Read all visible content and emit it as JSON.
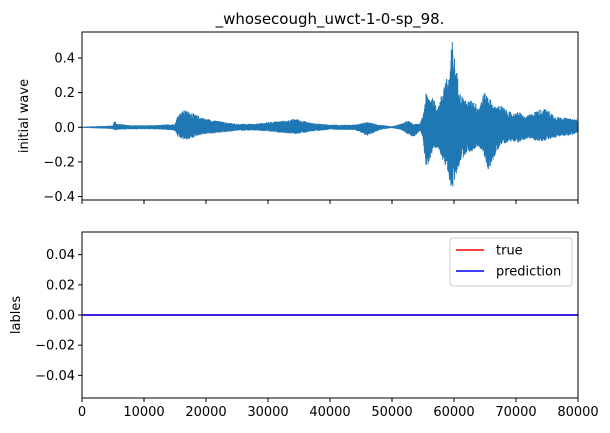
{
  "chart_data": [
    {
      "type": "line",
      "title": "_whosecough_uwct-1-0-sp_98.",
      "ylabel": "initial wave",
      "xlabel": "",
      "xlim": [
        0,
        80000
      ],
      "ylim": [
        -0.42,
        0.55
      ],
      "yticks": [
        -0.4,
        -0.2,
        0.0,
        0.2,
        0.4
      ],
      "ytick_labels": [
        "−0.4",
        "−0.2",
        "0.0",
        "0.2",
        "0.4"
      ],
      "xticks": [
        0,
        10000,
        20000,
        30000,
        40000,
        50000,
        60000,
        70000,
        80000
      ],
      "xtick_labels_visible": false,
      "series": [
        {
          "color": "#1f77b4",
          "envelope_x": [
            0,
            2000,
            5000,
            5300,
            5600,
            8000,
            12000,
            15000,
            15500,
            16500,
            17500,
            18500,
            20000,
            21500,
            23000,
            25000,
            28000,
            30000,
            33000,
            34500,
            35500,
            37000,
            40000,
            44000,
            46000,
            48000,
            50000,
            51500,
            52500,
            53500,
            54500,
            55000,
            55500,
            56500,
            57500,
            58500,
            59200,
            59700,
            60200,
            61000,
            62000,
            63000,
            64000,
            64800,
            65500,
            66500,
            67500,
            68500,
            69500,
            70500,
            71500,
            72500,
            73500,
            74500,
            75500,
            76500,
            77500,
            78500,
            79500,
            80000
          ],
          "upper": [
            0.003,
            0.006,
            0.01,
            0.045,
            0.02,
            0.012,
            0.012,
            0.02,
            0.075,
            0.1,
            0.09,
            0.07,
            0.05,
            0.04,
            0.03,
            0.02,
            0.02,
            0.03,
            0.04,
            0.05,
            0.04,
            0.025,
            0.015,
            0.015,
            0.03,
            0.015,
            0.005,
            0.02,
            0.04,
            0.02,
            0.02,
            0.07,
            0.2,
            0.17,
            0.12,
            0.27,
            0.3,
            0.51,
            0.38,
            0.2,
            0.15,
            0.16,
            0.12,
            0.2,
            0.19,
            0.12,
            0.13,
            0.1,
            0.08,
            0.09,
            0.06,
            0.08,
            0.1,
            0.11,
            0.09,
            0.06,
            0.06,
            0.05,
            0.05,
            0.04
          ],
          "lower": [
            -0.003,
            -0.006,
            -0.01,
            -0.02,
            -0.015,
            -0.012,
            -0.012,
            -0.02,
            -0.06,
            -0.075,
            -0.07,
            -0.05,
            -0.04,
            -0.035,
            -0.03,
            -0.02,
            -0.02,
            -0.025,
            -0.035,
            -0.04,
            -0.035,
            -0.025,
            -0.015,
            -0.015,
            -0.05,
            -0.015,
            -0.005,
            -0.015,
            -0.04,
            -0.06,
            -0.02,
            -0.06,
            -0.24,
            -0.16,
            -0.12,
            -0.22,
            -0.3,
            -0.37,
            -0.3,
            -0.2,
            -0.15,
            -0.14,
            -0.11,
            -0.16,
            -0.25,
            -0.18,
            -0.1,
            -0.09,
            -0.08,
            -0.09,
            -0.07,
            -0.07,
            -0.08,
            -0.08,
            -0.07,
            -0.06,
            -0.05,
            -0.05,
            -0.04,
            -0.03
          ]
        }
      ]
    },
    {
      "type": "line",
      "title": "",
      "ylabel": "lables",
      "xlabel": "",
      "xlim": [
        0,
        80000
      ],
      "ylim": [
        -0.055,
        0.055
      ],
      "yticks": [
        -0.04,
        -0.02,
        0.0,
        0.02,
        0.04
      ],
      "ytick_labels": [
        "−0.04",
        "−0.02",
        "0.00",
        "0.02",
        "0.04"
      ],
      "xticks": [
        0,
        10000,
        20000,
        30000,
        40000,
        50000,
        60000,
        70000,
        80000
      ],
      "xtick_labels": [
        "0",
        "10000",
        "20000",
        "30000",
        "40000",
        "50000",
        "60000",
        "70000",
        "80000"
      ],
      "legend_position": "top-right",
      "series": [
        {
          "name": "true",
          "color": "#ff0000",
          "x": [
            0,
            80000
          ],
          "y": [
            0,
            0
          ]
        },
        {
          "name": "prediction",
          "color": "#0000ff",
          "x": [
            0,
            80000
          ],
          "y": [
            0,
            0
          ]
        }
      ]
    }
  ]
}
